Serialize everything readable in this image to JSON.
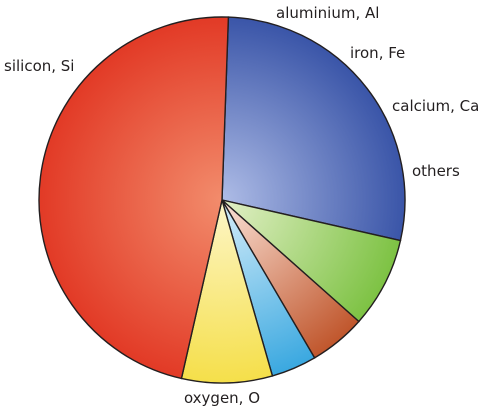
{
  "chart_data": {
    "type": "pie",
    "title": "",
    "slices": [
      {
        "label": "silicon, Si",
        "value": 28,
        "color": "#3a55a8",
        "highlight": "#aebce6"
      },
      {
        "label": "aluminium, Al",
        "value": 8,
        "color": "#7dc243",
        "highlight": "#e3f0c8"
      },
      {
        "label": "iron, Fe",
        "value": 5,
        "color": "#c0562c",
        "highlight": "#fbe3d8"
      },
      {
        "label": "calcium, Ca",
        "value": 4,
        "color": "#3aa8e0",
        "highlight": "#d7eefa"
      },
      {
        "label": "others",
        "value": 8,
        "color": "#f5df4a",
        "highlight": "#fdf6c8"
      },
      {
        "label": "oxygen, O",
        "value": 47,
        "color": "#e23a26",
        "highlight": "#f28c6c"
      }
    ]
  }
}
